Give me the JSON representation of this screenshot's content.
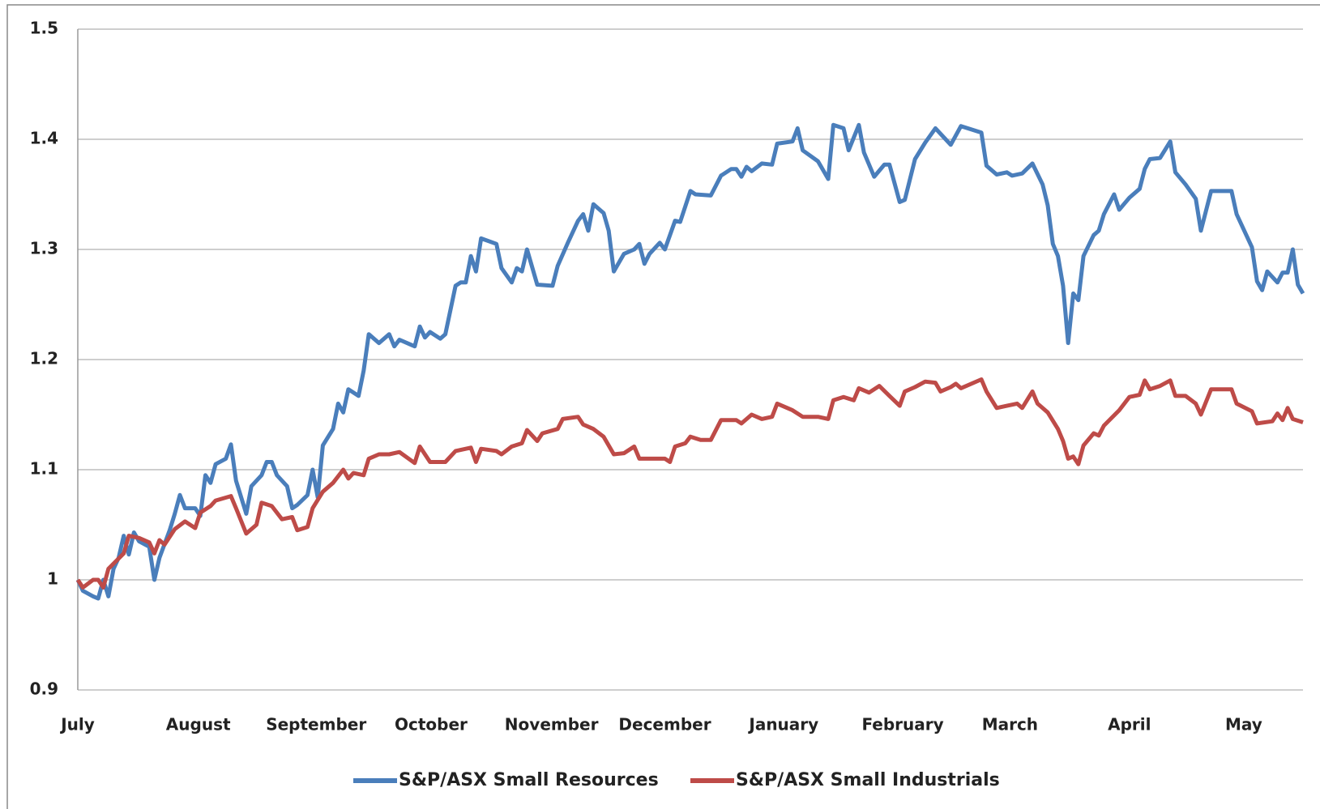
{
  "chart_data": {
    "type": "line",
    "ylim": [
      0.9,
      1.5
    ],
    "yticks": [
      0.9,
      1,
      1.1,
      1.2,
      1.3,
      1.4,
      1.5
    ],
    "grid": true,
    "xlim": [
      0,
      240
    ],
    "xticks": [
      {
        "value": 0,
        "label": "July"
      },
      {
        "value": 23.6,
        "label": "August"
      },
      {
        "value": 46.7,
        "label": "September"
      },
      {
        "value": 69.2,
        "label": "October"
      },
      {
        "value": 92.8,
        "label": "November"
      },
      {
        "value": 115,
        "label": "December"
      },
      {
        "value": 138.3,
        "label": "January"
      },
      {
        "value": 161.6,
        "label": "February"
      },
      {
        "value": 182.6,
        "label": "March"
      },
      {
        "value": 206,
        "label": "April"
      },
      {
        "value": 228.4,
        "label": "May"
      }
    ],
    "legend": "bottom",
    "series": [
      {
        "name": "S&P/ASX Small Resources",
        "color": "#4a7ebb",
        "x": [
          0,
          1,
          3,
          4,
          5,
          6,
          7,
          8,
          9,
          10,
          11,
          12,
          14,
          15,
          16,
          18,
          19,
          20,
          21,
          23,
          24,
          25,
          26,
          27,
          29,
          30,
          31,
          33,
          34,
          36,
          37,
          38,
          39,
          41,
          42,
          43,
          45,
          46,
          47,
          48,
          50,
          51,
          52,
          53,
          55,
          56,
          57,
          59,
          61,
          62,
          63,
          66,
          67,
          68,
          69,
          71,
          72,
          74,
          75,
          76,
          77,
          78,
          79,
          82,
          83,
          85,
          86,
          87,
          88,
          90,
          93,
          94,
          96,
          98,
          99,
          100,
          101,
          103,
          104,
          105,
          107,
          109,
          110,
          111,
          112,
          114,
          115,
          117,
          118,
          120,
          121,
          124,
          126,
          128,
          129,
          130,
          131,
          132,
          134,
          136,
          137,
          140,
          141,
          142,
          145,
          147,
          148,
          150,
          151,
          153,
          154,
          156,
          158,
          159,
          161,
          162,
          164,
          166,
          168,
          170,
          171,
          173,
          177,
          178,
          180,
          182,
          183,
          185,
          187,
          189,
          190,
          191,
          192,
          193,
          194,
          195,
          196,
          197,
          199,
          200,
          201,
          203,
          204,
          206,
          208,
          209,
          210,
          212,
          214,
          215,
          217,
          219,
          220,
          222,
          226,
          227,
          230,
          231,
          232,
          233,
          235,
          236,
          237,
          238,
          239,
          240
        ],
        "values": [
          1.0,
          0.99,
          0.985,
          0.983,
          1.0,
          0.985,
          1.01,
          1.02,
          1.04,
          1.023,
          1.043,
          1.035,
          1.03,
          1.0,
          1.02,
          1.045,
          1.06,
          1.077,
          1.065,
          1.065,
          1.058,
          1.095,
          1.088,
          1.105,
          1.11,
          1.123,
          1.09,
          1.06,
          1.085,
          1.095,
          1.107,
          1.107,
          1.095,
          1.085,
          1.065,
          1.068,
          1.077,
          1.1,
          1.075,
          1.122,
          1.137,
          1.16,
          1.152,
          1.173,
          1.167,
          1.19,
          1.223,
          1.215,
          1.223,
          1.212,
          1.218,
          1.212,
          1.23,
          1.22,
          1.225,
          1.219,
          1.223,
          1.267,
          1.27,
          1.27,
          1.294,
          1.28,
          1.31,
          1.305,
          1.283,
          1.27,
          1.283,
          1.28,
          1.3,
          1.268,
          1.267,
          1.285,
          1.306,
          1.326,
          1.332,
          1.317,
          1.341,
          1.333,
          1.317,
          1.28,
          1.296,
          1.3,
          1.305,
          1.287,
          1.296,
          1.306,
          1.3,
          1.326,
          1.325,
          1.353,
          1.35,
          1.349,
          1.367,
          1.373,
          1.373,
          1.366,
          1.375,
          1.371,
          1.378,
          1.377,
          1.396,
          1.398,
          1.41,
          1.39,
          1.38,
          1.364,
          1.413,
          1.41,
          1.39,
          1.413,
          1.388,
          1.366,
          1.377,
          1.377,
          1.343,
          1.345,
          1.382,
          1.397,
          1.41,
          1.4,
          1.395,
          1.412,
          1.406,
          1.376,
          1.368,
          1.37,
          1.367,
          1.369,
          1.378,
          1.359,
          1.34,
          1.305,
          1.294,
          1.267,
          1.215,
          1.26,
          1.254,
          1.294,
          1.313,
          1.317,
          1.332,
          1.35,
          1.336,
          1.347,
          1.355,
          1.373,
          1.382,
          1.383,
          1.398,
          1.37,
          1.359,
          1.346,
          1.317,
          1.353,
          1.353,
          1.332,
          1.302,
          1.271,
          1.263,
          1.28,
          1.27,
          1.279,
          1.279,
          1.3,
          1.268,
          1.26
        ]
      },
      {
        "name": "S&P/ASX Small Industrials",
        "color": "#be4b48",
        "x": [
          0,
          1,
          3,
          4,
          5,
          6,
          9,
          10,
          12,
          14,
          15,
          16,
          17,
          19,
          21,
          23,
          24,
          26,
          27,
          30,
          31,
          33,
          35,
          36,
          38,
          40,
          42,
          43,
          45,
          46,
          48,
          50,
          52,
          53,
          54,
          56,
          57,
          59,
          61,
          63,
          66,
          67,
          69,
          72,
          74,
          77,
          78,
          79,
          82,
          83,
          85,
          87,
          88,
          90,
          91,
          94,
          95,
          98,
          99,
          101,
          103,
          105,
          107,
          109,
          110,
          112,
          115,
          116,
          117,
          119,
          120,
          122,
          124,
          126,
          129,
          130,
          132,
          134,
          136,
          137,
          140,
          142,
          145,
          147,
          148,
          150,
          152,
          153,
          155,
          157,
          159,
          161,
          162,
          164,
          166,
          168,
          169,
          171,
          172,
          173,
          177,
          178,
          180,
          182,
          184,
          185,
          187,
          188,
          190,
          192,
          193,
          194,
          195,
          196,
          197,
          199,
          200,
          201,
          204,
          206,
          208,
          209,
          210,
          212,
          214,
          215,
          217,
          219,
          220,
          222,
          226,
          227,
          230,
          231,
          234,
          235,
          236,
          237,
          238,
          240
        ],
        "values": [
          1.0,
          0.993,
          1.0,
          1.0,
          0.993,
          1.01,
          1.024,
          1.04,
          1.038,
          1.034,
          1.024,
          1.036,
          1.032,
          1.046,
          1.053,
          1.047,
          1.061,
          1.067,
          1.072,
          1.076,
          1.065,
          1.042,
          1.05,
          1.07,
          1.067,
          1.055,
          1.057,
          1.045,
          1.048,
          1.065,
          1.08,
          1.088,
          1.1,
          1.092,
          1.097,
          1.095,
          1.11,
          1.114,
          1.114,
          1.116,
          1.106,
          1.121,
          1.107,
          1.107,
          1.117,
          1.12,
          1.107,
          1.119,
          1.117,
          1.114,
          1.121,
          1.124,
          1.136,
          1.126,
          1.133,
          1.137,
          1.146,
          1.148,
          1.141,
          1.137,
          1.13,
          1.114,
          1.115,
          1.121,
          1.11,
          1.11,
          1.11,
          1.107,
          1.121,
          1.124,
          1.13,
          1.127,
          1.127,
          1.145,
          1.145,
          1.142,
          1.15,
          1.146,
          1.148,
          1.16,
          1.154,
          1.148,
          1.148,
          1.146,
          1.163,
          1.166,
          1.163,
          1.174,
          1.17,
          1.176,
          1.167,
          1.158,
          1.171,
          1.175,
          1.18,
          1.179,
          1.171,
          1.175,
          1.178,
          1.174,
          1.182,
          1.171,
          1.156,
          1.158,
          1.16,
          1.156,
          1.171,
          1.16,
          1.152,
          1.137,
          1.126,
          1.11,
          1.112,
          1.105,
          1.122,
          1.133,
          1.131,
          1.14,
          1.154,
          1.166,
          1.168,
          1.181,
          1.173,
          1.176,
          1.181,
          1.167,
          1.167,
          1.16,
          1.15,
          1.173,
          1.173,
          1.16,
          1.153,
          1.142,
          1.144,
          1.151,
          1.145,
          1.156,
          1.146,
          1.143
        ]
      }
    ]
  }
}
